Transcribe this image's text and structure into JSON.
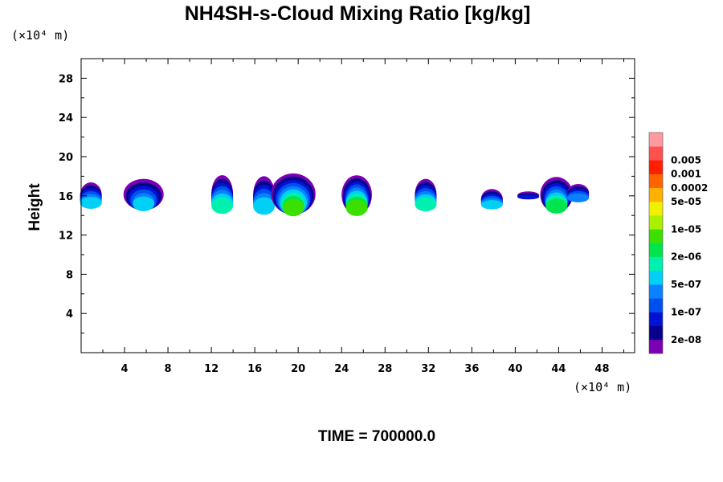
{
  "chart_data": {
    "type": "heatmap",
    "title": "NH4SH-s-Cloud Mixing Ratio [kg/kg]",
    "ylabel": "Height",
    "x_unit_label": "(×10⁴ m)",
    "y_unit_label": "(×10⁴ m)",
    "xlim": [
      0,
      51
    ],
    "ylim": [
      0,
      30
    ],
    "x_ticks": [
      4,
      8,
      12,
      16,
      20,
      24,
      28,
      32,
      36,
      40,
      44,
      48
    ],
    "y_ticks": [
      4,
      8,
      12,
      16,
      20,
      24,
      28
    ],
    "colorbar": {
      "colors": [
        "#7b00b4",
        "#08008c",
        "#0012d2",
        "#0050f0",
        "#0a82ff",
        "#00d0f5",
        "#00f0b0",
        "#00e44e",
        "#3ce000",
        "#a8f000",
        "#f0f000",
        "#ffb000",
        "#ff6400",
        "#ff1e00",
        "#ff5050",
        "#ff9aa0"
      ],
      "tick_labels": [
        {
          "label": "2e-08",
          "index": 1
        },
        {
          "label": "1e-07",
          "index": 3
        },
        {
          "label": "5e-07",
          "index": 5
        },
        {
          "label": "2e-06",
          "index": 7
        },
        {
          "label": "1e-05",
          "index": 9
        },
        {
          "label": "5e-05",
          "index": 11
        },
        {
          "label": "0.0002",
          "index": 12
        },
        {
          "label": "0.001",
          "index": 13
        },
        {
          "label": "0.005",
          "index": 14
        }
      ]
    },
    "clouds": [
      {
        "x0": 0.0,
        "x1": 1.8,
        "y_top": 16.2,
        "y_bot": 14.9,
        "peak": 5
      },
      {
        "x0": 3.9,
        "x1": 7.6,
        "y_top": 16.3,
        "y_bot": 14.7,
        "peak": 5
      },
      {
        "x0": 12.0,
        "x1": 14.0,
        "y_top": 16.4,
        "y_bot": 14.5,
        "peak": 6
      },
      {
        "x0": 16.4,
        "x1": 17.3,
        "y_top": 16.3,
        "y_bot": 14.4,
        "peak": 5
      },
      {
        "x0": 17.5,
        "x1": 21.6,
        "y_top": 16.4,
        "y_bot": 14.3,
        "peak": 8
      },
      {
        "x0": 24.0,
        "x1": 26.8,
        "y_top": 16.3,
        "y_bot": 14.3,
        "peak": 8
      },
      {
        "x0": 30.8,
        "x1": 32.7,
        "y_top": 16.3,
        "y_bot": 14.7,
        "peak": 6
      },
      {
        "x0": 37.3,
        "x1": 38.4,
        "y_top": 15.8,
        "y_bot": 14.8,
        "peak": 5
      },
      {
        "x0": 42.3,
        "x1": 45.3,
        "y_top": 16.3,
        "y_bot": 14.5,
        "peak": 7
      },
      {
        "x0": 45.2,
        "x1": 46.4,
        "y_top": 16.4,
        "y_bot": 15.5,
        "peak": 4
      },
      {
        "x0": 41.0,
        "x1": 41.4,
        "y_top": 16.1,
        "y_bot": 15.7,
        "peak": 2
      }
    ]
  },
  "footer": {
    "time_label": "TIME = 700000.0"
  }
}
